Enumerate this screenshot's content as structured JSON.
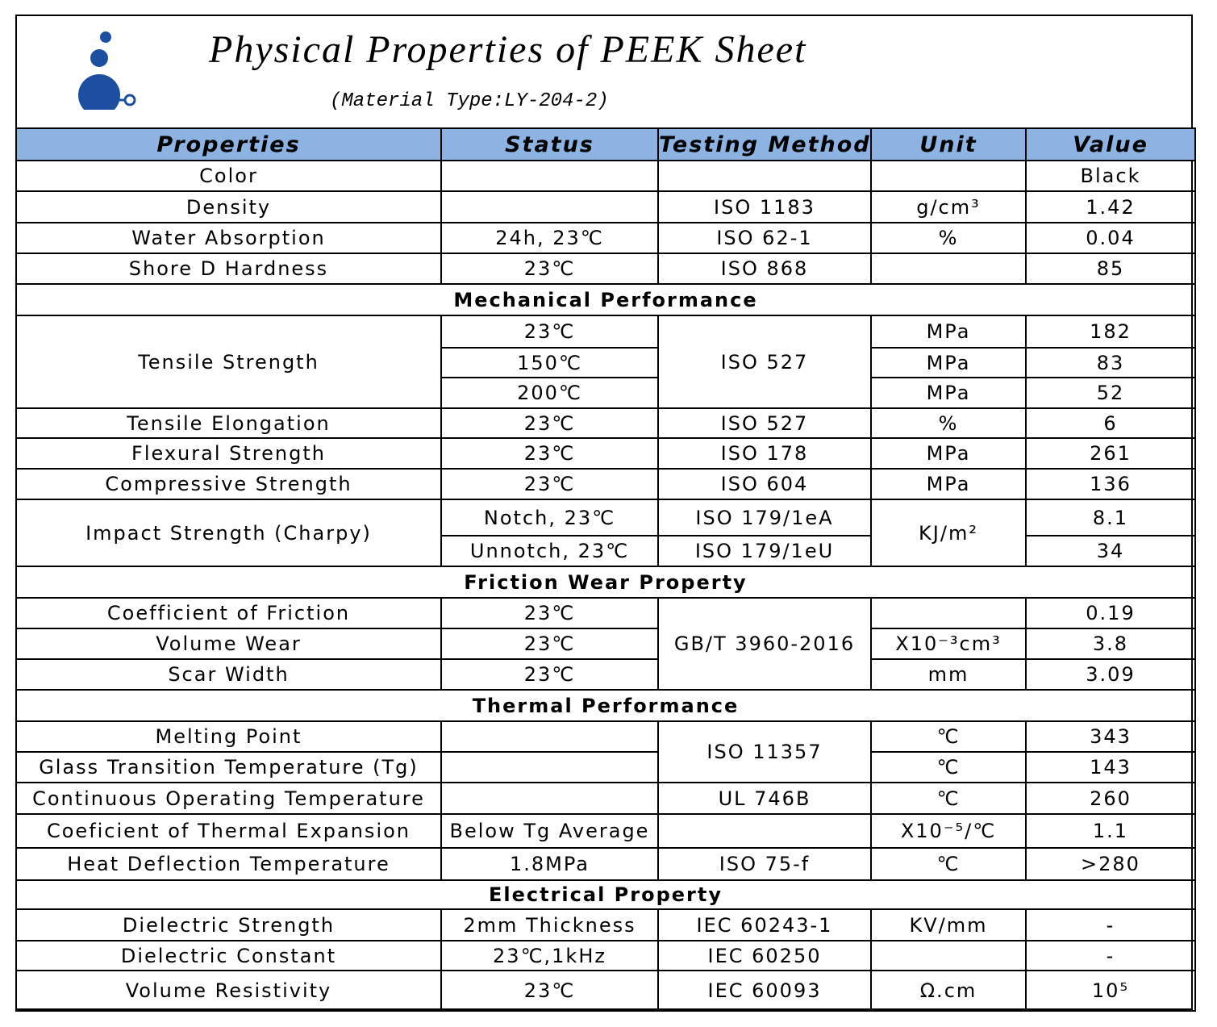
{
  "header": {
    "title": "Physical Properties of PEEK Sheet",
    "subtitle": "(Material Type:LY-204-2)"
  },
  "table": {
    "columns": [
      "Properties",
      "Status",
      "Testing Method",
      "Unit",
      "Value"
    ],
    "rows": [
      {
        "property": "Color",
        "value": "Black"
      },
      {
        "property": "Density",
        "method": "ISO 1183",
        "unit": "g/cm³",
        "value": "1.42"
      },
      {
        "property": "Water Absorption",
        "status": "24h, 23℃",
        "method": "ISO 62-1",
        "unit": "%",
        "value": "0.04"
      },
      {
        "property": "Shore D Hardness",
        "status": "23℃",
        "method": "ISO 868",
        "value": "85"
      },
      {
        "section": "Mechanical Performance"
      },
      {
        "property": "Tensile Strength",
        "status": "23℃",
        "method": "ISO 527",
        "unit": "MPa",
        "value": "182"
      },
      {
        "status": "150℃",
        "unit": "MPa",
        "value": "83"
      },
      {
        "status": "200℃",
        "unit": "MPa",
        "value": "52"
      },
      {
        "property": "Tensile Elongation",
        "status": "23℃",
        "method": "ISO 527",
        "unit": "%",
        "value": "6"
      },
      {
        "property": "Flexural Strength",
        "status": "23℃",
        "method": "ISO 178",
        "unit": "MPa",
        "value": "261"
      },
      {
        "property": "Compressive Strength",
        "status": "23℃",
        "method": "ISO 604",
        "unit": "MPa",
        "value": "136"
      },
      {
        "property": "Impact Strength (Charpy)",
        "status": "Notch, 23℃",
        "method": "ISO 179/1eA",
        "unit": "KJ/m²",
        "value": "8.1"
      },
      {
        "status": "Unnotch, 23℃",
        "method": "ISO 179/1eU",
        "value": "34"
      },
      {
        "section": "Friction Wear Property"
      },
      {
        "property": "Coefficient of Friction",
        "status": "23℃",
        "method": "GB/T 3960-2016",
        "value": "0.19"
      },
      {
        "property": "Volume Wear",
        "status": "23℃",
        "unit": "X10⁻³cm³",
        "value": "3.8"
      },
      {
        "property": "Scar Width",
        "status": "23℃",
        "unit": "mm",
        "value": "3.09"
      },
      {
        "section": "Thermal Performance"
      },
      {
        "property": "Melting Point",
        "method": "ISO 11357",
        "unit": "℃",
        "value": "343"
      },
      {
        "property": "Glass Transition Temperature (Tg)",
        "unit": "℃",
        "value": "143"
      },
      {
        "property": "Continuous Operating Temperature",
        "method": "UL 746B",
        "unit": "℃",
        "value": "260"
      },
      {
        "property": "Coeficient of Thermal Expansion",
        "status": "Below Tg Average",
        "unit": "X10⁻⁵/℃",
        "value": "1.1"
      },
      {
        "property": "Heat Deflection Temperature",
        "status": "1.8MPa",
        "method": "ISO 75-f",
        "unit": "℃",
        "value": ">280"
      },
      {
        "section": "Electrical Property"
      },
      {
        "property": "Dielectric Strength",
        "status": "2mm Thickness",
        "method": "IEC 60243-1",
        "unit": "KV/mm",
        "value": "-"
      },
      {
        "property": "Dielectric Constant",
        "status": "23℃,1kHz",
        "method": "IEC 60250",
        "value": "-"
      },
      {
        "property": "Volume Resistivity",
        "status": "23℃",
        "method": "IEC 60093",
        "unit": "Ω.cm",
        "value": "10⁵"
      }
    ]
  }
}
